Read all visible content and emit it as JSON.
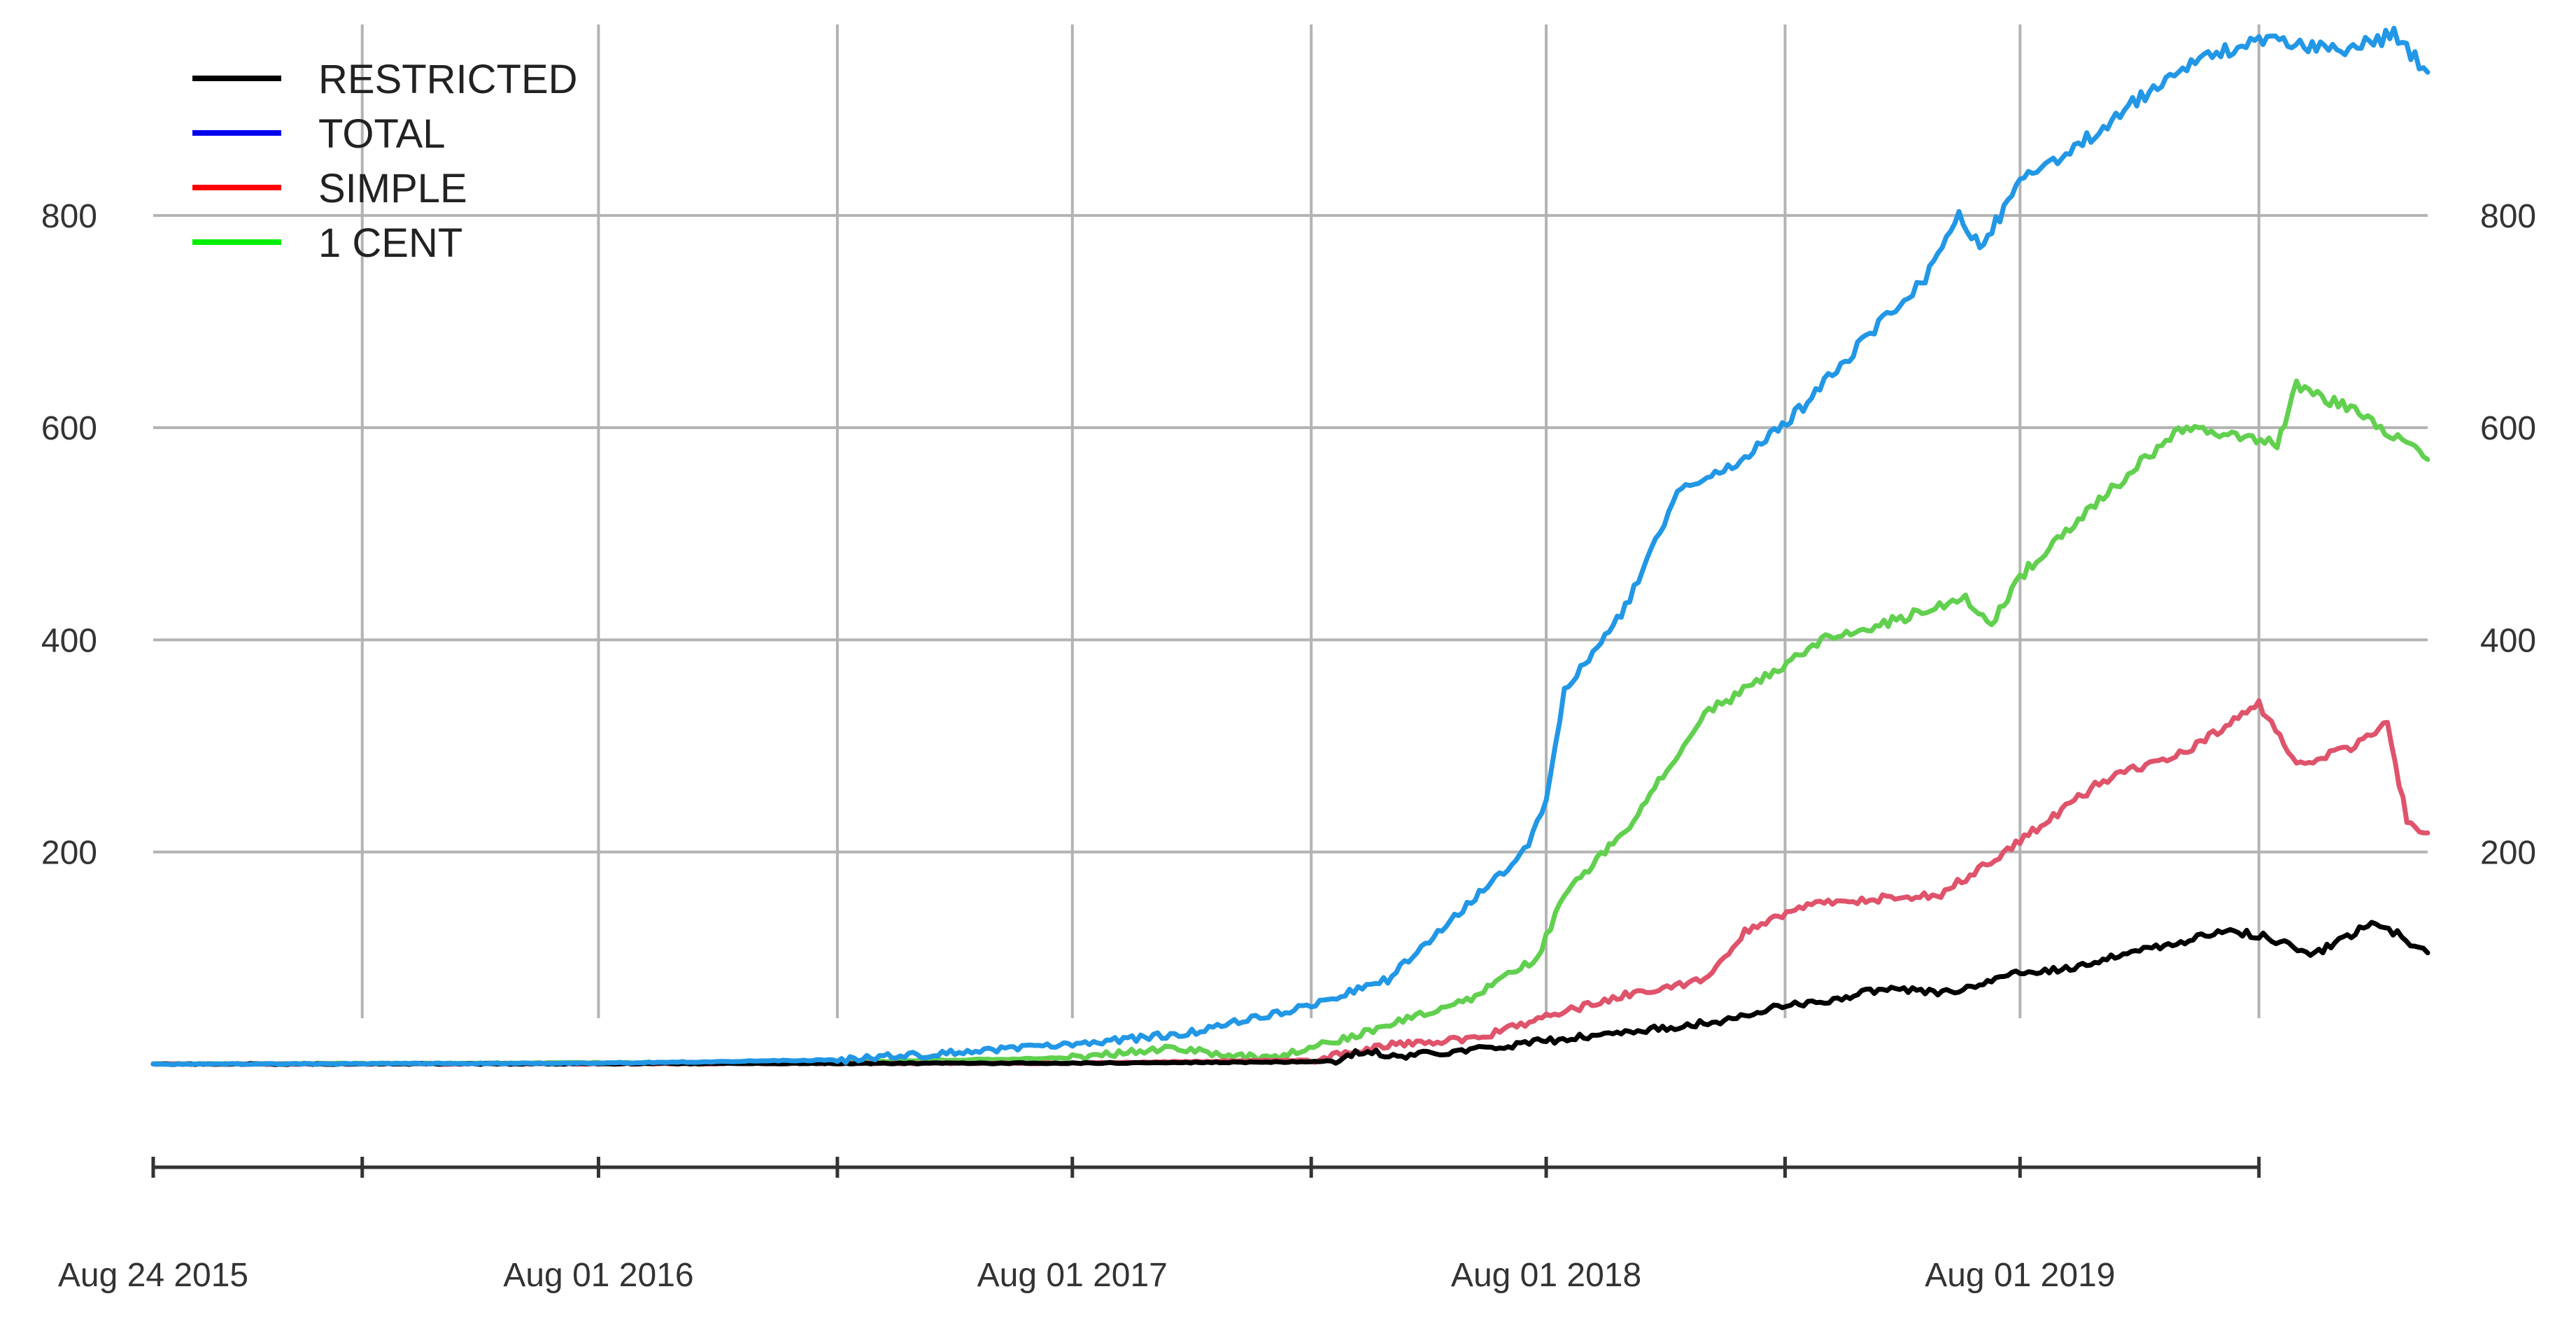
{
  "chart_data": {
    "type": "line",
    "title": "",
    "xlabel": "",
    "ylabel": "",
    "x_range": [
      "2015-08-24",
      "2020-06-10"
    ],
    "ylim": [
      -45,
      980
    ],
    "y_ticks": [
      200,
      400,
      600,
      800
    ],
    "y_tick_labels": [
      "200",
      "400",
      "600",
      "800"
    ],
    "x_ticks": [
      "2015-08-24",
      "2016-02-01",
      "2016-08-01",
      "2017-02-01",
      "2017-08-01",
      "2018-02-01",
      "2018-08-01",
      "2019-02-01",
      "2019-08-01",
      "2020-02-01"
    ],
    "x_tick_labels": [
      "Aug 24 2015",
      "",
      "Aug 01 2016",
      "",
      "Aug 01 2017",
      "",
      "Aug 01 2018",
      "",
      "Aug 01 2019",
      ""
    ],
    "grid": true,
    "legend_position": "top-left",
    "series": [
      {
        "name": "RESTRICTED",
        "legend_color": "#000000",
        "line_color": "#000000",
        "points": [
          [
            "2015-08-24",
            0
          ],
          [
            "2017-08-01",
            1
          ],
          [
            "2018-01-01",
            2
          ],
          [
            "2018-02-20",
            3
          ],
          [
            "2018-03-10",
            12
          ],
          [
            "2018-04-15",
            8
          ],
          [
            "2018-06-10",
            14
          ],
          [
            "2018-08-01",
            22
          ],
          [
            "2018-10-01",
            30
          ],
          [
            "2018-12-10",
            40
          ],
          [
            "2019-01-20",
            52
          ],
          [
            "2019-03-20",
            63
          ],
          [
            "2019-04-01",
            70
          ],
          [
            "2019-06-15",
            68
          ],
          [
            "2019-08-01",
            86
          ],
          [
            "2019-09-15",
            92
          ],
          [
            "2019-11-01",
            108
          ],
          [
            "2020-01-10",
            125
          ],
          [
            "2020-02-01",
            122
          ],
          [
            "2020-03-15",
            104
          ],
          [
            "2020-05-01",
            135
          ],
          [
            "2020-06-10",
            105
          ]
        ]
      },
      {
        "name": "TOTAL",
        "legend_color": "#0000ee",
        "line_color": "#2297e6",
        "points": [
          [
            "2015-08-24",
            0
          ],
          [
            "2016-08-01",
            1
          ],
          [
            "2017-02-01",
            4
          ],
          [
            "2017-08-01",
            18
          ],
          [
            "2017-11-01",
            30
          ],
          [
            "2018-02-01",
            55
          ],
          [
            "2018-04-01",
            80
          ],
          [
            "2018-06-01",
            150
          ],
          [
            "2018-07-15",
            200
          ],
          [
            "2018-08-01",
            245
          ],
          [
            "2018-08-15",
            350
          ],
          [
            "2018-10-01",
            430
          ],
          [
            "2018-11-10",
            540
          ],
          [
            "2019-01-01",
            570
          ],
          [
            "2019-02-15",
            620
          ],
          [
            "2019-04-01",
            680
          ],
          [
            "2019-05-20",
            740
          ],
          [
            "2019-06-15",
            800
          ],
          [
            "2019-07-01",
            770
          ],
          [
            "2019-08-01",
            830
          ],
          [
            "2019-10-01",
            880
          ],
          [
            "2019-12-01",
            940
          ],
          [
            "2020-02-01",
            965
          ],
          [
            "2020-04-01",
            955
          ],
          [
            "2020-05-15",
            970
          ],
          [
            "2020-06-10",
            935
          ]
        ]
      },
      {
        "name": "SIMPLE",
        "legend_color": "#ff0000",
        "line_color": "#df536b",
        "points": [
          [
            "2015-08-24",
            0
          ],
          [
            "2017-08-01",
            1
          ],
          [
            "2018-02-01",
            4
          ],
          [
            "2018-04-01",
            18
          ],
          [
            "2018-06-10",
            25
          ],
          [
            "2018-08-01",
            45
          ],
          [
            "2018-10-01",
            65
          ],
          [
            "2018-12-01",
            80
          ],
          [
            "2019-01-01",
            125
          ],
          [
            "2019-02-15",
            150
          ],
          [
            "2019-04-01",
            155
          ],
          [
            "2019-06-01",
            160
          ],
          [
            "2019-08-01",
            210
          ],
          [
            "2019-10-01",
            265
          ],
          [
            "2019-12-15",
            300
          ],
          [
            "2020-02-01",
            340
          ],
          [
            "2020-03-01",
            280
          ],
          [
            "2020-04-15",
            300
          ],
          [
            "2020-05-10",
            320
          ],
          [
            "2020-05-25",
            230
          ],
          [
            "2020-06-10",
            218
          ]
        ]
      },
      {
        "name": "1 CENT",
        "legend_color": "#00ee00",
        "line_color": "#61d04f",
        "points": [
          [
            "2015-08-24",
            0
          ],
          [
            "2017-02-01",
            2
          ],
          [
            "2017-08-01",
            6
          ],
          [
            "2017-10-15",
            15
          ],
          [
            "2018-01-01",
            5
          ],
          [
            "2018-03-01",
            25
          ],
          [
            "2018-06-01",
            60
          ],
          [
            "2018-07-25",
            100
          ],
          [
            "2018-08-15",
            160
          ],
          [
            "2018-10-01",
            220
          ],
          [
            "2018-12-01",
            330
          ],
          [
            "2019-01-10",
            360
          ],
          [
            "2019-03-01",
            400
          ],
          [
            "2019-05-01",
            420
          ],
          [
            "2019-06-20",
            440
          ],
          [
            "2019-07-10",
            415
          ],
          [
            "2019-08-01",
            460
          ],
          [
            "2019-10-01",
            530
          ],
          [
            "2019-12-01",
            600
          ],
          [
            "2020-02-15",
            585
          ],
          [
            "2020-03-01",
            640
          ],
          [
            "2020-04-15",
            615
          ],
          [
            "2020-06-10",
            570
          ]
        ]
      }
    ]
  }
}
